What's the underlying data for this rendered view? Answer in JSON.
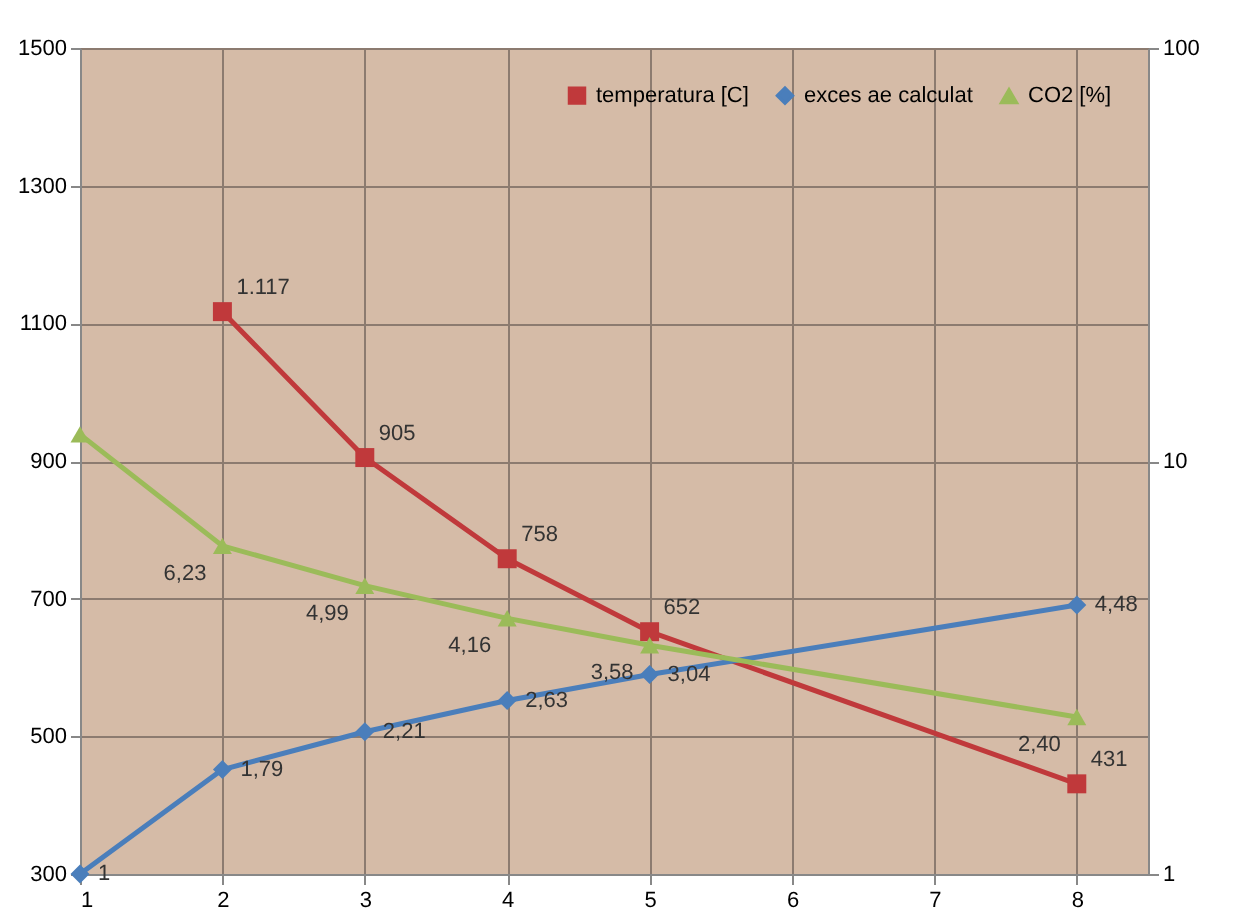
{
  "chart_data": {
    "type": "line",
    "x": [
      1,
      2,
      3,
      4,
      5,
      8
    ],
    "xlim": [
      1,
      8.5
    ],
    "xticks": [
      1,
      2,
      3,
      4,
      5,
      6,
      7,
      8
    ],
    "ylim": [
      300,
      1500
    ],
    "yticks": [
      300,
      500,
      700,
      900,
      1100,
      1300,
      1500
    ],
    "y2lim": [
      1,
      100
    ],
    "y2ticks": [
      1,
      10,
      100
    ],
    "log": "y2",
    "grid": true,
    "legend": "top right",
    "series": [
      {
        "name": "temperatura [C]",
        "color": "#c0393b",
        "marker": "square",
        "values": [
          null,
          1117,
          905,
          758,
          652,
          431
        ],
        "value_labels": [
          null,
          "1.117",
          "905",
          "758",
          "652",
          "431"
        ]
      },
      {
        "name": "exces ae calculat",
        "color": "#4a7ebb",
        "marker": "diamond",
        "axis": "y2",
        "values": [
          1,
          1.79,
          2.21,
          2.63,
          3.04,
          4.48
        ],
        "value_labels": [
          "1",
          "1,79",
          "2,21",
          "2,63",
          "3,04",
          "4,48"
        ]
      },
      {
        "name": "CO2 [%]",
        "color": "#9bbb59",
        "marker": "triangle",
        "axis": "y2",
        "values": [
          11.6,
          6.23,
          4.99,
          4.16,
          3.58,
          2.4
        ],
        "value_labels": [
          null,
          "6,23",
          "4,99",
          "4,16",
          "3,58",
          "2,40"
        ]
      }
    ]
  }
}
